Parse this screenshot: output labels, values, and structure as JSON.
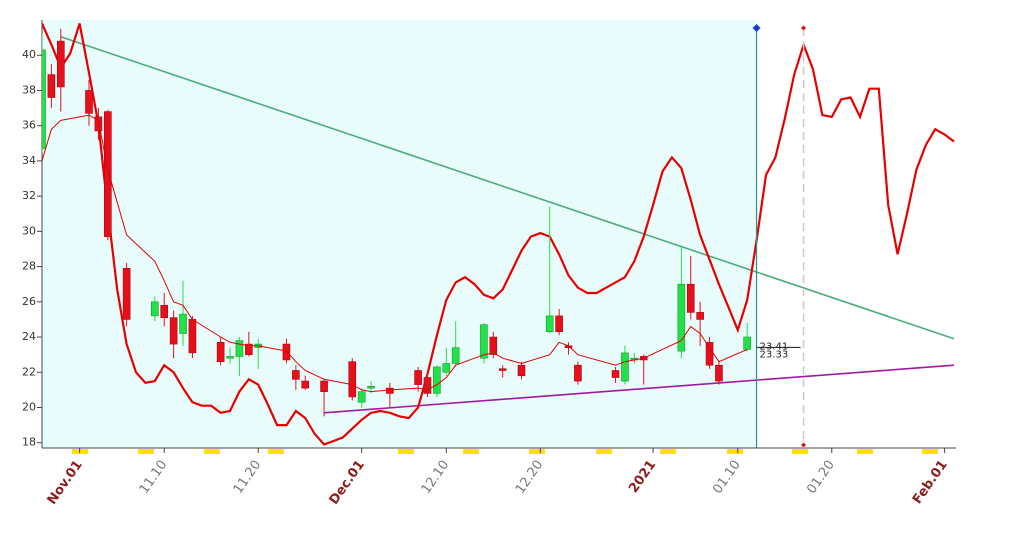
{
  "chart_data": {
    "type": "candlestick",
    "xlim": [
      "10.28",
      "02.02"
    ],
    "ylim": [
      17.7,
      42.0
    ],
    "yticks": [
      18,
      20,
      22,
      24,
      26,
      28,
      30,
      32,
      34,
      36,
      38,
      40
    ],
    "xticks": [
      {
        "value": "11.01",
        "label": "Nov.01"
      },
      "11.10",
      "11.20",
      {
        "value": "12.01",
        "label": "Dec.01"
      },
      "12.10",
      "12.20",
      {
        "value": "01.01",
        "label": "2021"
      },
      "01.10",
      "01.20",
      {
        "value": "02.01",
        "label": "Feb.01"
      }
    ],
    "up_color": "#22e048",
    "down_color": "#e5101c",
    "x": [
      "10.28",
      "10.29",
      "10.30",
      "11.02",
      "11.03",
      "11.04",
      "11.06",
      "11.09",
      "11.10",
      "11.11",
      "11.12",
      "11.13",
      "11.16",
      "11.17",
      "11.18",
      "11.19",
      "11.20",
      "11.23",
      "11.24",
      "11.25",
      "11.27",
      "11.30",
      "12.01",
      "12.02",
      "12.04",
      "12.07",
      "12.08",
      "12.09",
      "12.10",
      "12.11",
      "12.14",
      "12.15",
      "12.16",
      "12.18",
      "12.21",
      "12.22",
      "12.23",
      "12.24",
      "12.28",
      "12.29",
      "12.30",
      "12.31",
      "01.04",
      "01.05",
      "01.06",
      "01.07",
      "01.08",
      "01.11"
    ],
    "open": [
      34.7,
      38.9,
      40.8,
      38.0,
      36.5,
      36.8,
      27.9,
      25.2,
      25.8,
      25.1,
      24.2,
      25.0,
      23.7,
      22.8,
      22.9,
      23.6,
      23.4,
      23.6,
      22.1,
      21.5,
      21.5,
      22.6,
      20.3,
      21.1,
      21.1,
      22.1,
      21.7,
      20.8,
      22.0,
      22.5,
      22.8,
      24.0,
      22.2,
      22.4,
      24.3,
      25.2,
      23.5,
      22.4,
      22.1,
      21.5,
      22.7,
      22.9,
      23.2,
      27.0,
      25.4,
      23.7,
      22.4,
      23.3
    ],
    "high": [
      41.2,
      39.5,
      41.5,
      38.6,
      37.0,
      36.9,
      28.2,
      26.3,
      26.5,
      25.5,
      27.2,
      25.2,
      24.0,
      23.4,
      24.0,
      24.3,
      23.9,
      23.9,
      22.4,
      21.8,
      21.6,
      22.8,
      21.1,
      21.5,
      21.4,
      22.3,
      22.0,
      22.4,
      23.4,
      24.9,
      24.8,
      24.3,
      22.4,
      22.6,
      31.4,
      25.6,
      23.7,
      22.6,
      22.3,
      23.5,
      23.1,
      23.0,
      29.2,
      28.6,
      26.0,
      24.0,
      22.6,
      24.8
    ],
    "low": [
      34.5,
      37.0,
      36.8,
      36.0,
      35.2,
      29.5,
      24.6,
      24.9,
      24.6,
      22.8,
      23.5,
      22.8,
      22.4,
      22.5,
      21.8,
      22.9,
      22.2,
      22.5,
      21.0,
      21.0,
      19.5,
      20.4,
      20.0,
      20.8,
      20.0,
      20.9,
      20.6,
      20.6,
      21.8,
      22.3,
      22.5,
      22.8,
      21.7,
      21.6,
      24.2,
      24.1,
      23.0,
      21.3,
      21.4,
      21.3,
      22.5,
      21.3,
      22.8,
      25.0,
      23.5,
      22.2,
      21.3,
      23.2
    ],
    "close": [
      40.3,
      37.6,
      38.2,
      36.7,
      35.7,
      29.7,
      25.0,
      26.0,
      25.1,
      23.6,
      25.3,
      23.1,
      22.6,
      22.9,
      23.8,
      23.0,
      23.6,
      22.7,
      21.6,
      21.1,
      20.9,
      20.6,
      20.9,
      21.2,
      20.8,
      21.3,
      20.8,
      22.3,
      22.5,
      23.4,
      24.7,
      23.0,
      22.1,
      21.8,
      25.2,
      24.3,
      23.4,
      21.5,
      21.7,
      23.1,
      22.8,
      22.7,
      27.0,
      25.4,
      25.0,
      22.4,
      21.5,
      24.0
    ],
    "ma": {
      "color": "#e00000",
      "values": [
        34.0,
        35.8,
        36.3,
        36.6,
        36.3,
        33.5,
        29.8,
        28.3,
        27.2,
        26.0,
        25.8,
        25.0,
        24.0,
        23.7,
        23.6,
        23.5,
        23.5,
        23.2,
        22.6,
        22.1,
        21.6,
        21.3,
        21.0,
        20.9,
        21.0,
        21.1,
        21.0,
        21.3,
        21.7,
        22.4,
        23.0,
        23.1,
        22.8,
        22.5,
        23.0,
        23.7,
        23.5,
        23.0,
        22.4,
        22.6,
        22.7,
        22.8,
        23.8,
        24.6,
        24.2,
        23.4,
        22.6,
        23.3
      ]
    },
    "cycle": {
      "color": "#e80000",
      "x": [
        "10.28",
        "10.29",
        "10.30",
        "10.31",
        "11.01",
        "11.02",
        "11.03",
        "11.04",
        "11.05",
        "11.06",
        "11.07",
        "11.08",
        "11.09",
        "11.10",
        "11.11",
        "11.12",
        "11.13",
        "11.14",
        "11.15",
        "11.16",
        "11.17",
        "11.18",
        "11.19",
        "11.20",
        "11.21",
        "11.22",
        "11.23",
        "11.24",
        "11.25",
        "11.26",
        "11.27",
        "11.28",
        "11.29",
        "11.30",
        "12.01",
        "12.02",
        "12.03",
        "12.04",
        "12.05",
        "12.06",
        "12.07",
        "12.08",
        "12.09",
        "12.10",
        "12.11",
        "12.12",
        "12.13",
        "12.14",
        "12.15",
        "12.16",
        "12.17",
        "12.18",
        "12.19",
        "12.20",
        "12.21",
        "12.22",
        "12.23",
        "12.24",
        "12.25",
        "12.26",
        "12.27",
        "12.28",
        "12.29",
        "12.30",
        "12.31",
        "01.01",
        "01.02",
        "01.03",
        "01.04",
        "01.05",
        "01.06",
        "01.07",
        "01.08",
        "01.09",
        "01.10",
        "01.11",
        "01.12",
        "01.13",
        "01.14",
        "01.15",
        "01.16",
        "01.17",
        "01.18",
        "01.19",
        "01.20",
        "01.21",
        "01.22",
        "01.23",
        "01.24",
        "01.25",
        "01.26",
        "01.27",
        "01.28",
        "01.29",
        "01.30",
        "01.31",
        "02.01",
        "02.02"
      ],
      "values": [
        41.8,
        40.6,
        39.3,
        40.1,
        41.8,
        39.0,
        36.1,
        31.2,
        26.7,
        23.6,
        22.0,
        21.4,
        21.5,
        22.4,
        22.0,
        21.1,
        20.3,
        20.1,
        20.1,
        19.7,
        19.8,
        20.9,
        21.6,
        21.3,
        20.2,
        19.0,
        19.0,
        19.8,
        19.4,
        18.5,
        17.9,
        18.1,
        18.3,
        18.8,
        19.3,
        19.7,
        19.8,
        19.7,
        19.5,
        19.4,
        20.0,
        21.9,
        24.1,
        26.1,
        27.1,
        27.4,
        27.0,
        26.4,
        26.2,
        26.7,
        27.8,
        28.9,
        29.7,
        29.9,
        29.7,
        28.7,
        27.5,
        26.8,
        26.5,
        26.5,
        26.8,
        27.1,
        27.4,
        28.3,
        29.7,
        31.5,
        33.4,
        34.2,
        33.6,
        31.8,
        29.8,
        28.4,
        27.0,
        25.7,
        24.4,
        26.1,
        29.5,
        33.2,
        34.2,
        36.4,
        38.9,
        40.6,
        39.2,
        36.6,
        36.5,
        37.5,
        37.6,
        36.5,
        38.1,
        38.1,
        31.5,
        28.7,
        31.0,
        33.5,
        34.9,
        35.8,
        35.5,
        35.1
      ]
    },
    "trendlines": [
      {
        "color": "#4daa7a",
        "x": [
          "10.30",
          "02.02"
        ],
        "values": [
          41.05,
          23.9
        ]
      },
      {
        "color": "#a01aa0",
        "x": [
          "11.27",
          "02.02"
        ],
        "values": [
          19.7,
          22.4
        ]
      }
    ],
    "vlines": [
      {
        "x": "01.12",
        "color": "#2a8f8f",
        "dashed": false,
        "marker_color": "#1a3fd0"
      },
      {
        "x": "01.17",
        "color": "#c8c8c8",
        "dashed": true,
        "marker_color": "#e01010"
      }
    ],
    "shade_color": "#e8fcfc",
    "last_values": [
      23.41,
      23.33
    ]
  }
}
